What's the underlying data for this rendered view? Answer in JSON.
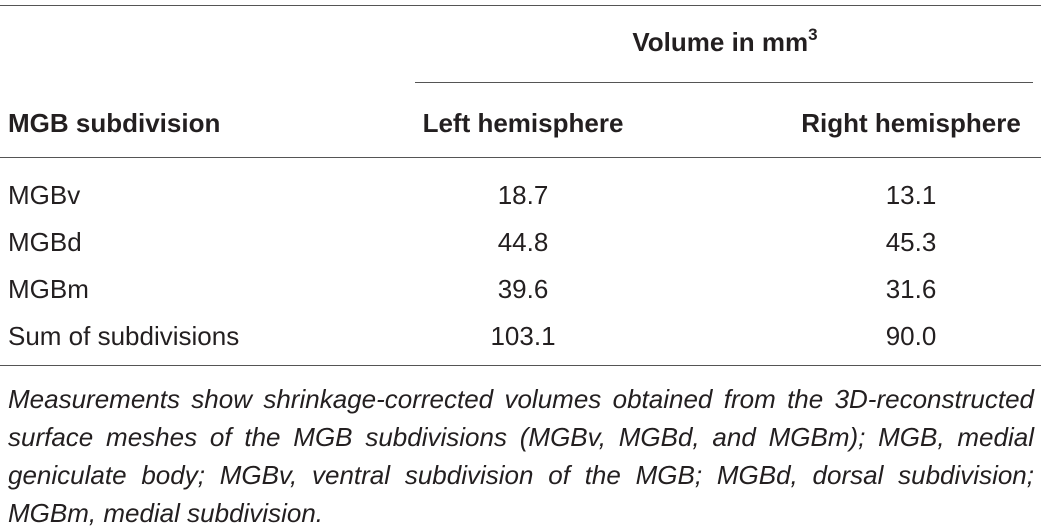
{
  "header": {
    "group": "Volume in mm",
    "group_superscript": "3",
    "columns": [
      "MGB subdivision",
      "Left hemisphere",
      "Right hemisphere"
    ]
  },
  "table": {
    "rows": [
      [
        "MGBv",
        "18.7",
        "13.1"
      ],
      [
        "MGBd",
        "44.8",
        "45.3"
      ],
      [
        "MGBm",
        "39.6",
        "31.6"
      ],
      [
        "Sum of subdivisions",
        "103.1",
        "90.0"
      ]
    ]
  },
  "footnote": "Measurements show shrinkage-corrected volumes obtained from the 3D-reconstructed surface meshes of the MGB subdivisions (MGBv, MGBd, and MGBm); MGB, medial geniculate body; MGBv, ventral subdivision of the MGB; MGBd, dorsal subdivision; MGBm, medial subdivision."
}
